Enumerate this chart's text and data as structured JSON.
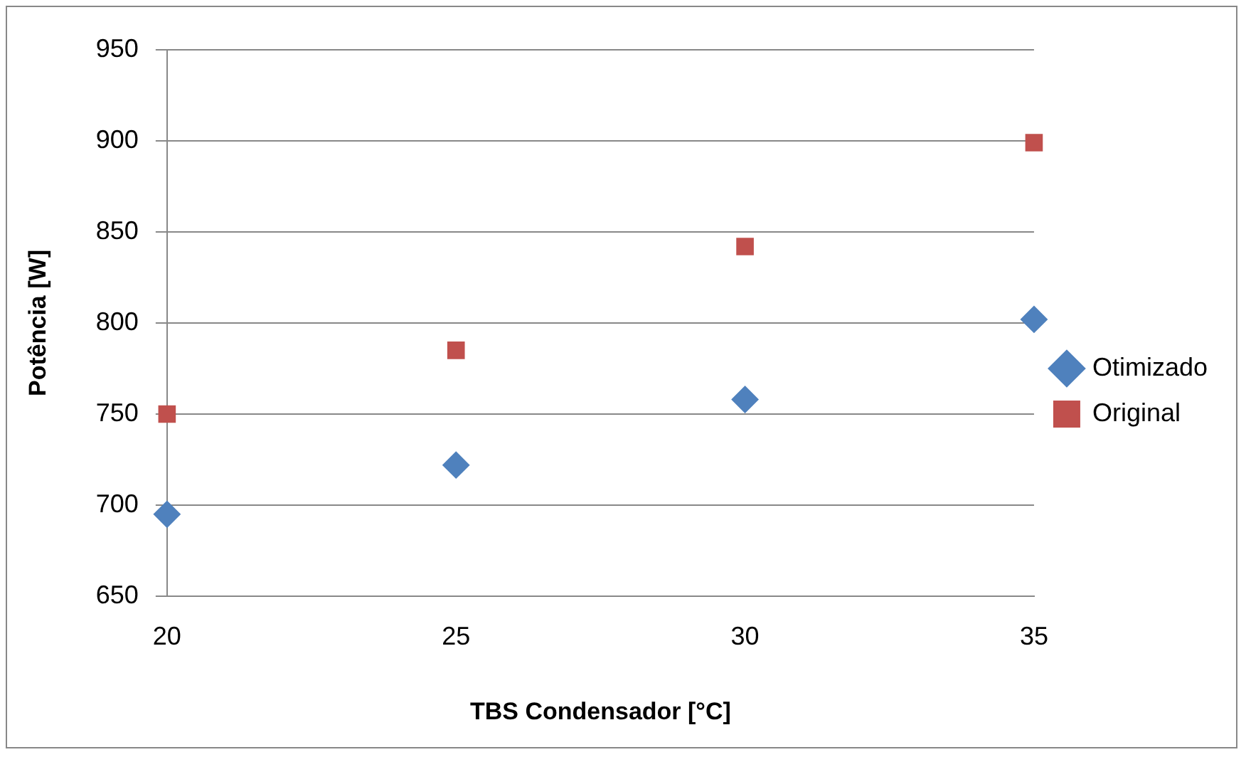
{
  "chart_data": {
    "type": "scatter",
    "xlabel": "TBS Condensador [°C]",
    "ylabel": "Potência [W]",
    "x": [
      20,
      25,
      30,
      35
    ],
    "series": [
      {
        "name": "Otimizado",
        "color": "#4f81bd",
        "marker": "diamond",
        "values": [
          695,
          722,
          758,
          802
        ]
      },
      {
        "name": "Original",
        "color": "#c0504d",
        "marker": "square",
        "values": [
          750,
          785,
          842,
          899
        ]
      }
    ],
    "xlim": [
      20,
      35
    ],
    "xticks": [
      20,
      25,
      30,
      35
    ],
    "ylim": [
      650,
      950
    ],
    "yticks": [
      650,
      700,
      750,
      800,
      850,
      900,
      950
    ],
    "grid": "y",
    "legend": "right"
  }
}
